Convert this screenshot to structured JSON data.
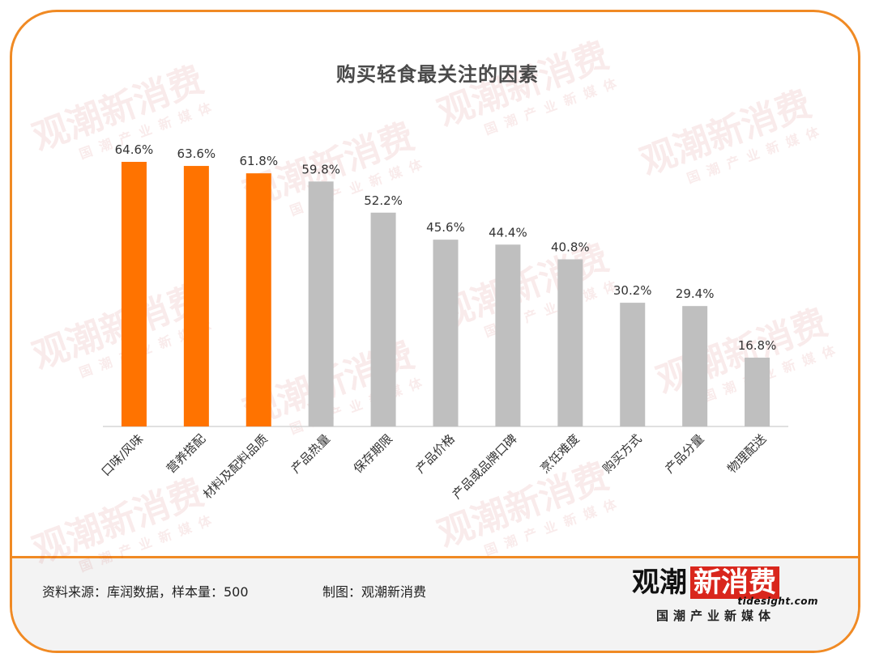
{
  "title": "购买轻食最关注的因素",
  "chart_data": {
    "type": "bar",
    "title": "购买轻食最关注的因素",
    "categories": [
      "口味/风味",
      "营养搭配",
      "材料及配料品质",
      "产品热量",
      "保存期限",
      "产品价格",
      "产品或品牌口碑",
      "烹饪难度",
      "购买方式",
      "产品分量",
      "物理配送"
    ],
    "values": [
      64.6,
      63.6,
      61.8,
      59.8,
      52.2,
      45.6,
      44.4,
      40.8,
      30.2,
      29.4,
      16.8
    ],
    "value_labels": [
      "64.6%",
      "63.6%",
      "61.8%",
      "59.8%",
      "52.2%",
      "45.6%",
      "44.4%",
      "40.8%",
      "30.2%",
      "29.4%",
      "16.8%"
    ],
    "highlight_count": 3,
    "colors": {
      "highlight": "#ff7300",
      "default": "#bfbfbf"
    },
    "ylim": [
      0,
      65
    ],
    "grid": false,
    "legend": "none"
  },
  "footer": {
    "source": "资料来源：库润数据，样本量：500",
    "credit": "制图：观潮新消费"
  },
  "logo": {
    "main_a": "观潮",
    "main_b": "新消费",
    "url": "tidesight.com",
    "sub": "国潮产业新媒体"
  },
  "watermark": {
    "big": "观潮新消费",
    "small": "国潮产业新媒体"
  }
}
